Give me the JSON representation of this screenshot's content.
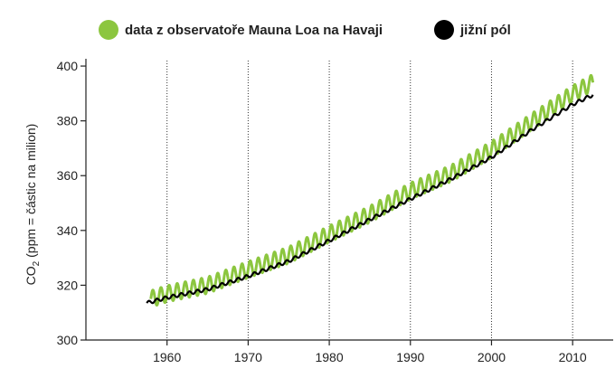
{
  "chart_data": {
    "type": "line",
    "title": "",
    "xlabel": "",
    "ylabel": "CO",
    "ylabel_subscript": "2",
    "ylabel_rest": " (ppm = částic na milion)",
    "xlim": [
      1950,
      2015
    ],
    "ylim": [
      300,
      402
    ],
    "x_ticks": [
      1960,
      1970,
      1980,
      1990,
      2000,
      2010
    ],
    "x_tick_labels": [
      "1960",
      "1970",
      "1980",
      "1990",
      "2000",
      "2010"
    ],
    "y_ticks": [
      300,
      320,
      340,
      360,
      380,
      400
    ],
    "y_tick_labels": [
      "300",
      "320",
      "340",
      "360",
      "380",
      "400"
    ],
    "vertical_grid": true,
    "horizontal_grid": false,
    "legend_position": "top",
    "series": [
      {
        "name": "data z observatoře Mauna Loa na Havaji",
        "color": "#8cc63f",
        "seasonal_amplitude_ppm": 3,
        "x": [
          1958,
          1960,
          1965,
          1970,
          1975,
          1980,
          1985,
          1990,
          1995,
          2000,
          2005,
          2010,
          2012.5
        ],
        "y": [
          315,
          316.9,
          320,
          325.7,
          331,
          338.7,
          345.9,
          354.4,
          360.8,
          369.5,
          379.8,
          389.9,
          394
        ]
      },
      {
        "name": "jižní pól",
        "color": "#000000",
        "seasonal_amplitude_ppm": 0.6,
        "x": [
          1957.5,
          1960,
          1965,
          1970,
          1975,
          1980,
          1985,
          1990,
          1995,
          2000,
          2005,
          2010,
          2012.5
        ],
        "y": [
          313.5,
          315.5,
          318.5,
          323.3,
          328.8,
          336.3,
          344,
          351.5,
          358.8,
          366.7,
          376.8,
          386,
          389.5
        ]
      }
    ]
  }
}
